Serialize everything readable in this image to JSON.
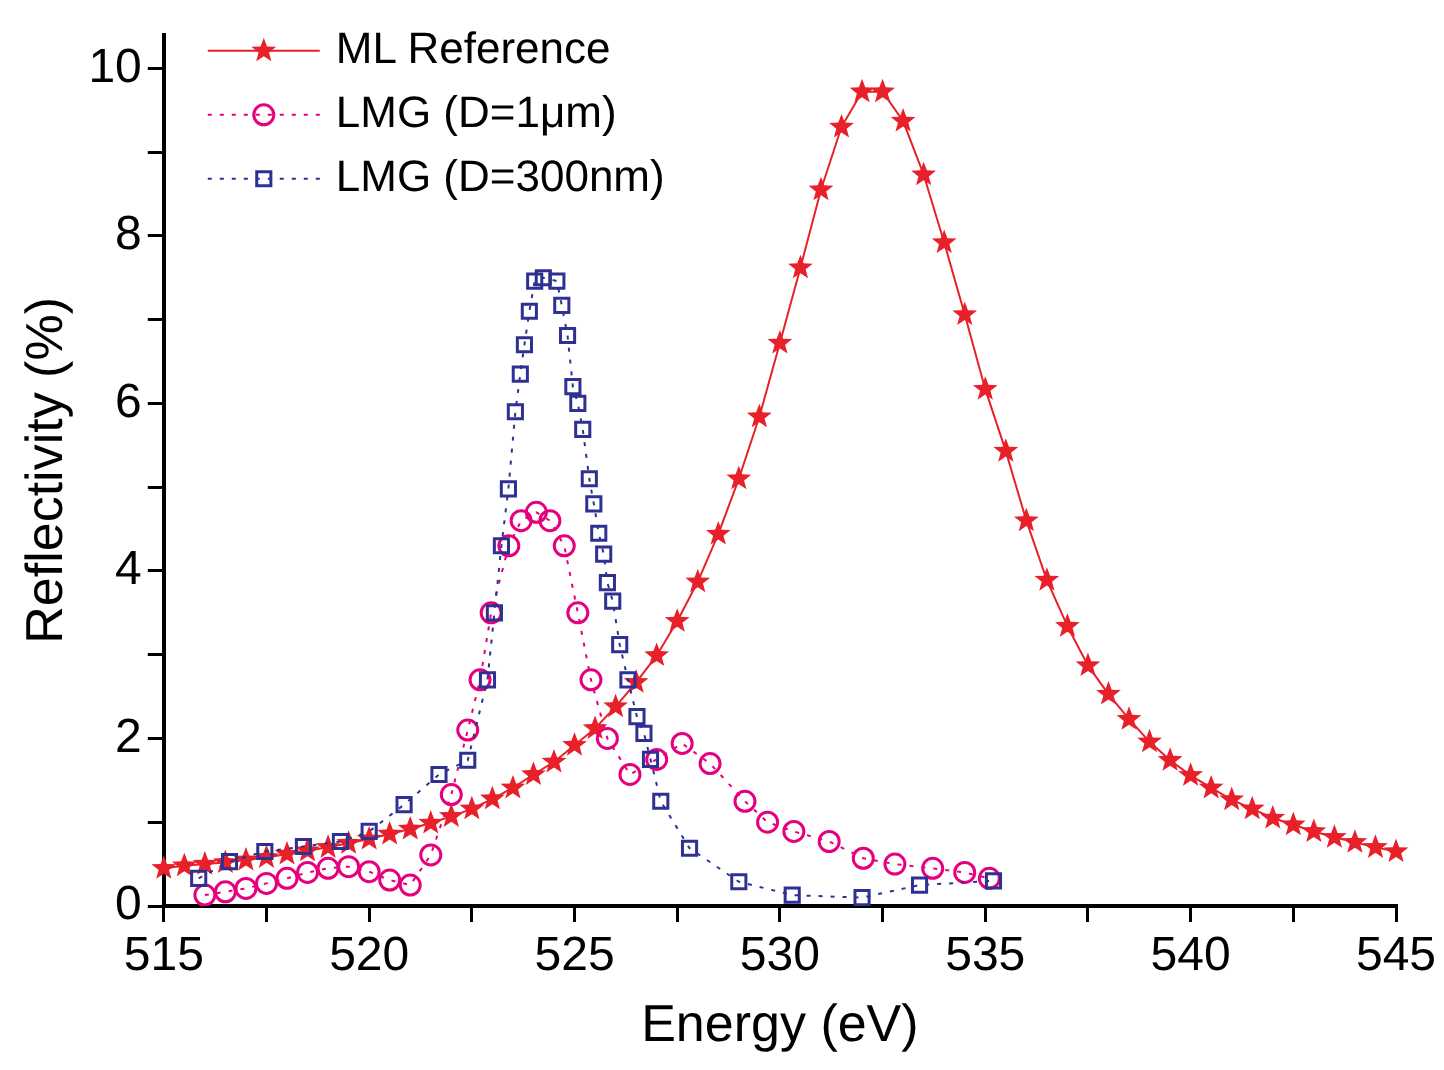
{
  "chart_data": {
    "type": "line",
    "xlabel": "Energy (eV)",
    "ylabel": "Reflectivity (%)",
    "xlim": [
      515,
      545
    ],
    "xticks": [
      515,
      {
        "value": 517.5,
        "label": null
      },
      520,
      {
        "value": 522.5,
        "label": null
      },
      525,
      {
        "value": 527.5,
        "label": null
      },
      530,
      {
        "value": 532.5,
        "label": null
      },
      535,
      {
        "value": 537.5,
        "label": null
      },
      540,
      {
        "value": 542.5,
        "label": null
      },
      545
    ],
    "ylim": [
      0,
      10.4
    ],
    "yticks": [
      0,
      {
        "value": 1,
        "label": null
      },
      2,
      {
        "value": 3,
        "label": null
      },
      4,
      {
        "value": 5,
        "label": null
      },
      6,
      {
        "value": 7,
        "label": null
      },
      8,
      {
        "value": 9,
        "label": null
      },
      10
    ],
    "grid": false,
    "legend": "top left",
    "series": [
      {
        "name": "ML Reference",
        "color": "#e8202a",
        "marker": "star",
        "line_style": "solid",
        "x": [
          515,
          515.5,
          516,
          516.5,
          517,
          517.5,
          518,
          518.5,
          519,
          519.5,
          520,
          520.5,
          521,
          521.5,
          522,
          522.5,
          523,
          523.5,
          524,
          524.5,
          525,
          525.5,
          526,
          526.5,
          527,
          527.5,
          528,
          528.5,
          529,
          529.5,
          530,
          530.5,
          531,
          531.5,
          532,
          532.5,
          533,
          533.5,
          534,
          534.5,
          535,
          535.5,
          536,
          536.5,
          537,
          537.5,
          538,
          538.5,
          539,
          539.5,
          540,
          540.5,
          541,
          541.5,
          542,
          542.5,
          543,
          543.5,
          544,
          544.5,
          545
        ],
        "values": [
          0.45,
          0.48,
          0.5,
          0.52,
          0.55,
          0.58,
          0.62,
          0.66,
          0.7,
          0.75,
          0.8,
          0.86,
          0.92,
          0.99,
          1.07,
          1.16,
          1.28,
          1.41,
          1.57,
          1.72,
          1.92,
          2.12,
          2.38,
          2.67,
          2.99,
          3.4,
          3.87,
          4.44,
          5.1,
          5.84,
          6.72,
          7.62,
          8.55,
          9.3,
          9.72,
          9.72,
          9.37,
          8.73,
          7.92,
          7.06,
          6.17,
          5.43,
          4.6,
          3.89,
          3.34,
          2.87,
          2.53,
          2.23,
          1.96,
          1.74,
          1.56,
          1.41,
          1.27,
          1.16,
          1.05,
          0.97,
          0.89,
          0.82,
          0.76,
          0.7,
          0.65
        ]
      },
      {
        "name": "LMG (D=1μm)",
        "color": "#e6007e",
        "marker": "circle",
        "line_style": "dotted",
        "x": [
          516,
          516.5,
          517,
          517.5,
          518,
          518.5,
          519,
          519.5,
          520,
          520.5,
          521,
          521.5,
          522,
          522.4,
          522.7,
          522.97,
          523.4,
          523.7,
          524.07,
          524.4,
          524.75,
          525.08,
          525.4,
          525.8,
          526.35,
          527,
          527.62,
          528.3,
          529.15,
          529.7,
          530.34,
          531.2,
          532.03,
          532.8,
          533.72,
          534.5,
          535.1
        ],
        "values": [
          0.13,
          0.17,
          0.21,
          0.27,
          0.33,
          0.4,
          0.45,
          0.47,
          0.41,
          0.31,
          0.25,
          0.61,
          1.33,
          2.1,
          2.7,
          3.5,
          4.3,
          4.6,
          4.7,
          4.6,
          4.3,
          3.5,
          2.7,
          2,
          1.57,
          1.75,
          1.94,
          1.7,
          1.25,
          1,
          0.89,
          0.77,
          0.57,
          0.5,
          0.45,
          0.4,
          0.33
        ]
      },
      {
        "name": "LMG (D=300nm)",
        "color": "#2e3192",
        "marker": "square",
        "line_style": "dotted",
        "x": [
          515.85,
          516.6,
          517.46,
          518.4,
          519.3,
          520,
          520.85,
          521.7,
          522.4,
          522.88,
          523.05,
          523.22,
          523.39,
          523.56,
          523.68,
          523.78,
          523.9,
          524.03,
          524.24,
          524.57,
          524.69,
          524.83,
          524.96,
          525.08,
          525.2,
          525.36,
          525.47,
          525.59,
          525.71,
          525.8,
          525.93,
          526.1,
          526.3,
          526.52,
          526.69,
          526.85,
          527.1,
          527.8,
          529,
          530.3,
          532,
          533.4,
          535.2
        ],
        "values": [
          0.33,
          0.53,
          0.65,
          0.71,
          0.77,
          0.89,
          1.21,
          1.57,
          1.74,
          2.7,
          3.5,
          4.3,
          4.98,
          5.9,
          6.35,
          6.7,
          7.1,
          7.46,
          7.5,
          7.46,
          7.17,
          6.81,
          6.2,
          6,
          5.69,
          5.1,
          4.8,
          4.45,
          4.2,
          3.86,
          3.64,
          3.12,
          2.7,
          2.26,
          2.06,
          1.75,
          1.25,
          0.69,
          0.29,
          0.13,
          0.1,
          0.25,
          0.3
        ]
      }
    ]
  }
}
